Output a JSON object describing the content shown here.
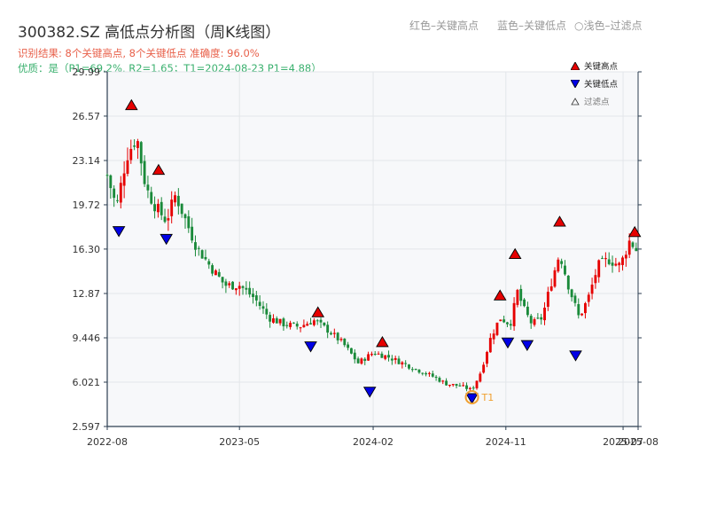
{
  "header": {
    "title": "300382.SZ 高低点分析图（周K线图）",
    "legend_red": "红色–关键高点",
    "legend_blue": "蓝色–关键低点",
    "legend_circle_glyph": "○",
    "legend_light": "浅色–过滤点",
    "result_text": "识别结果: 8个关键高点, 8个关键低点  准确度: 96.0%",
    "quality_text": "优质：是（P1=69.2%, R2=1.65；T1=2024-08-23 P1=4.88）"
  },
  "colors": {
    "up": "#e60000",
    "down": "#1a8a3a",
    "high_marker": "#e60000",
    "low_marker": "#0000e6",
    "t1": "#f0a030",
    "plot_bg": "#f7f8fa",
    "grid": "#e3e6ea",
    "axis": "#2c3e50",
    "result_text": "#e8604a",
    "quality_text": "#3ab06e"
  },
  "legend": {
    "high": "关键高点",
    "low": "关键低点",
    "filtered": "过滤点"
  },
  "chart_data": {
    "type": "candlestick",
    "title": "300382.SZ 高低点分析图（周K线图）",
    "y_ticks": [
      "2.597",
      "6.021",
      "9.446",
      "12.87",
      "16.30",
      "19.72",
      "23.14",
      "26.57",
      "29.99"
    ],
    "ylim": [
      2.597,
      29.99
    ],
    "x_ticks": [
      "2022-08",
      "2023-05",
      "2024-02",
      "2024-11",
      "2025-07",
      "2025-08"
    ],
    "xlim": [
      "2022-08-01",
      "2025-08-01"
    ],
    "grid": true,
    "legend_position": "top-right",
    "close_anchors": [
      [
        "2022-08-01",
        22.0
      ],
      [
        "2022-08-20",
        19.5
      ],
      [
        "2022-09-10",
        23.5
      ],
      [
        "2022-10-01",
        25.0
      ],
      [
        "2022-10-20",
        21.0
      ],
      [
        "2022-11-10",
        19.5
      ],
      [
        "2022-12-01",
        18.5
      ],
      [
        "2022-12-20",
        20.5
      ],
      [
        "2023-01-10",
        18.5
      ],
      [
        "2023-02-01",
        16.5
      ],
      [
        "2023-03-01",
        15.0
      ],
      [
        "2023-04-01",
        13.5
      ],
      [
        "2023-05-01",
        13.5
      ],
      [
        "2023-06-01",
        12.5
      ],
      [
        "2023-07-01",
        11.0
      ],
      [
        "2023-08-01",
        10.5
      ],
      [
        "2023-09-01",
        10.3
      ],
      [
        "2023-10-01",
        10.8
      ],
      [
        "2023-11-01",
        10.0
      ],
      [
        "2023-12-01",
        9.0
      ],
      [
        "2024-01-01",
        7.5
      ],
      [
        "2024-02-01",
        8.3
      ],
      [
        "2024-03-01",
        8.0
      ],
      [
        "2024-04-01",
        7.5
      ],
      [
        "2024-05-01",
        7.0
      ],
      [
        "2024-06-01",
        6.5
      ],
      [
        "2024-07-01",
        5.9
      ],
      [
        "2024-08-01",
        5.7
      ],
      [
        "2024-08-23",
        5.4
      ],
      [
        "2024-09-10",
        6.8
      ],
      [
        "2024-10-01",
        9.5
      ],
      [
        "2024-10-20",
        11.0
      ],
      [
        "2024-11-10",
        10.5
      ],
      [
        "2024-11-25",
        13.0
      ],
      [
        "2024-12-10",
        11.5
      ],
      [
        "2024-12-25",
        10.5
      ],
      [
        "2025-01-15",
        11.0
      ],
      [
        "2025-02-01",
        13.5
      ],
      [
        "2025-02-20",
        16.0
      ],
      [
        "2025-03-10",
        13.5
      ],
      [
        "2025-04-01",
        11.0
      ],
      [
        "2025-04-20",
        12.5
      ],
      [
        "2025-05-10",
        15.0
      ],
      [
        "2025-06-01",
        15.5
      ],
      [
        "2025-06-25",
        15.0
      ],
      [
        "2025-07-15",
        17.0
      ],
      [
        "2025-08-01",
        16.0
      ]
    ],
    "key_highs": [
      {
        "date": "2022-09-20",
        "value": 27.0
      },
      {
        "date": "2022-11-15",
        "value": 22.0
      },
      {
        "date": "2023-10-10",
        "value": 11.0
      },
      {
        "date": "2024-02-20",
        "value": 8.7
      },
      {
        "date": "2024-10-20",
        "value": 12.3
      },
      {
        "date": "2024-11-20",
        "value": 15.5
      },
      {
        "date": "2025-02-20",
        "value": 18.0
      },
      {
        "date": "2025-07-25",
        "value": 17.2
      }
    ],
    "key_lows": [
      {
        "date": "2022-08-25",
        "value": 18.1
      },
      {
        "date": "2022-12-01",
        "value": 17.5
      },
      {
        "date": "2023-09-25",
        "value": 9.2
      },
      {
        "date": "2024-01-25",
        "value": 5.7
      },
      {
        "date": "2024-08-23",
        "value": 5.2
      },
      {
        "date": "2024-11-05",
        "value": 9.5
      },
      {
        "date": "2024-12-15",
        "value": 9.3
      },
      {
        "date": "2025-03-25",
        "value": 8.5
      }
    ],
    "t1": {
      "label": "T1",
      "date": "2024-08-23",
      "value": 5.2
    }
  }
}
